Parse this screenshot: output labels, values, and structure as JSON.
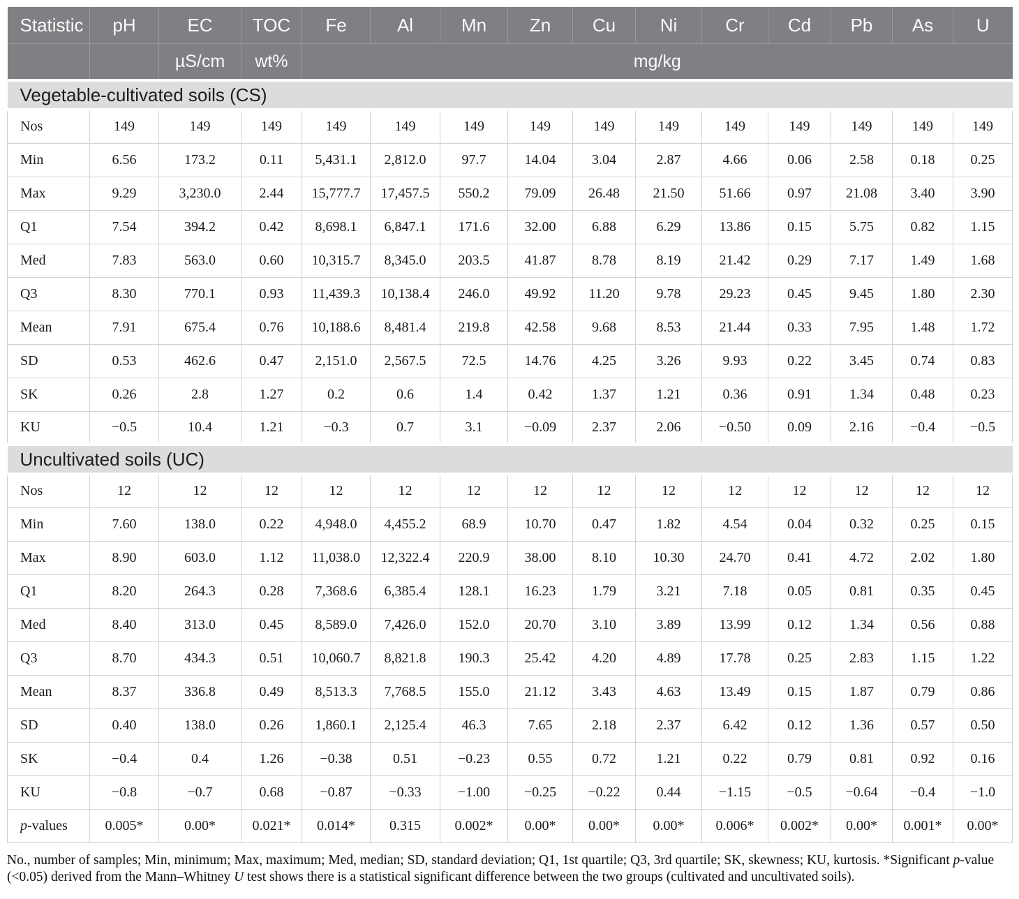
{
  "colors": {
    "header_bg": "#7e8083",
    "header_text": "#fafafa",
    "section_bg": "#dcdcde",
    "cell_border": "#d2d2d2",
    "body_text": "#1c1c1c"
  },
  "table": {
    "header": {
      "columns": [
        "Statistic",
        "pH",
        "EC",
        "TOC",
        "Fe",
        "Al",
        "Mn",
        "Zn",
        "Cu",
        "Ni",
        "Cr",
        "Cd",
        "Pb",
        "As",
        "U"
      ],
      "units": [
        "",
        "",
        "µS/cm",
        "wt%"
      ],
      "unit_span": {
        "label": "mg/kg",
        "colspan": 11
      }
    },
    "sections": [
      {
        "title": "Vegetable-cultivated soils (CS)",
        "rows": [
          {
            "label": "Nos",
            "values": [
              "149",
              "149",
              "149",
              "149",
              "149",
              "149",
              "149",
              "149",
              "149",
              "149",
              "149",
              "149",
              "149",
              "149"
            ]
          },
          {
            "label": "Min",
            "values": [
              "6.56",
              "173.2",
              "0.11",
              "5,431.1",
              "2,812.0",
              "97.7",
              "14.04",
              "3.04",
              "2.87",
              "4.66",
              "0.06",
              "2.58",
              "0.18",
              "0.25"
            ]
          },
          {
            "label": "Max",
            "values": [
              "9.29",
              "3,230.0",
              "2.44",
              "15,777.7",
              "17,457.5",
              "550.2",
              "79.09",
              "26.48",
              "21.50",
              "51.66",
              "0.97",
              "21.08",
              "3.40",
              "3.90"
            ]
          },
          {
            "label": "Q1",
            "values": [
              "7.54",
              "394.2",
              "0.42",
              "8,698.1",
              "6,847.1",
              "171.6",
              "32.00",
              "6.88",
              "6.29",
              "13.86",
              "0.15",
              "5.75",
              "0.82",
              "1.15"
            ]
          },
          {
            "label": "Med",
            "values": [
              "7.83",
              "563.0",
              "0.60",
              "10,315.7",
              "8,345.0",
              "203.5",
              "41.87",
              "8.78",
              "8.19",
              "21.42",
              "0.29",
              "7.17",
              "1.49",
              "1.68"
            ]
          },
          {
            "label": "Q3",
            "values": [
              "8.30",
              "770.1",
              "0.93",
              "11,439.3",
              "10,138.4",
              "246.0",
              "49.92",
              "11.20",
              "9.78",
              "29.23",
              "0.45",
              "9.45",
              "1.80",
              "2.30"
            ]
          },
          {
            "label": "Mean",
            "values": [
              "7.91",
              "675.4",
              "0.76",
              "10,188.6",
              "8,481.4",
              "219.8",
              "42.58",
              "9.68",
              "8.53",
              "21.44",
              "0.33",
              "7.95",
              "1.48",
              "1.72"
            ]
          },
          {
            "label": "SD",
            "values": [
              "0.53",
              "462.6",
              "0.47",
              "2,151.0",
              "2,567.5",
              "72.5",
              "14.76",
              "4.25",
              "3.26",
              "9.93",
              "0.22",
              "3.45",
              "0.74",
              "0.83"
            ]
          },
          {
            "label": "SK",
            "values": [
              "0.26",
              "2.8",
              "1.27",
              "0.2",
              "0.6",
              "1.4",
              "0.42",
              "1.37",
              "1.21",
              "0.36",
              "0.91",
              "1.34",
              "0.48",
              "0.23"
            ]
          },
          {
            "label": "KU",
            "values": [
              "−0.5",
              "10.4",
              "1.21",
              "−0.3",
              "0.7",
              "3.1",
              "−0.09",
              "2.37",
              "2.06",
              "−0.50",
              "0.09",
              "2.16",
              "−0.4",
              "−0.5"
            ]
          }
        ]
      },
      {
        "title": "Uncultivated soils (UC)",
        "rows": [
          {
            "label": "Nos",
            "values": [
              "12",
              "12",
              "12",
              "12",
              "12",
              "12",
              "12",
              "12",
              "12",
              "12",
              "12",
              "12",
              "12",
              "12"
            ]
          },
          {
            "label": "Min",
            "values": [
              "7.60",
              "138.0",
              "0.22",
              "4,948.0",
              "4,455.2",
              "68.9",
              "10.70",
              "0.47",
              "1.82",
              "4.54",
              "0.04",
              "0.32",
              "0.25",
              "0.15"
            ]
          },
          {
            "label": "Max",
            "values": [
              "8.90",
              "603.0",
              "1.12",
              "11,038.0",
              "12,322.4",
              "220.9",
              "38.00",
              "8.10",
              "10.30",
              "24.70",
              "0.41",
              "4.72",
              "2.02",
              "1.80"
            ]
          },
          {
            "label": "Q1",
            "values": [
              "8.20",
              "264.3",
              "0.28",
              "7,368.6",
              "6,385.4",
              "128.1",
              "16.23",
              "1.79",
              "3.21",
              "7.18",
              "0.05",
              "0.81",
              "0.35",
              "0.45"
            ]
          },
          {
            "label": "Med",
            "values": [
              "8.40",
              "313.0",
              "0.45",
              "8,589.0",
              "7,426.0",
              "152.0",
              "20.70",
              "3.10",
              "3.89",
              "13.99",
              "0.12",
              "1.34",
              "0.56",
              "0.88"
            ]
          },
          {
            "label": "Q3",
            "values": [
              "8.70",
              "434.3",
              "0.51",
              "10,060.7",
              "8,821.8",
              "190.3",
              "25.42",
              "4.20",
              "4.89",
              "17.78",
              "0.25",
              "2.83",
              "1.15",
              "1.22"
            ]
          },
          {
            "label": "Mean",
            "values": [
              "8.37",
              "336.8",
              "0.49",
              "8,513.3",
              "7,768.5",
              "155.0",
              "21.12",
              "3.43",
              "4.63",
              "13.49",
              "0.15",
              "1.87",
              "0.79",
              "0.86"
            ]
          },
          {
            "label": "SD",
            "values": [
              "0.40",
              "138.0",
              "0.26",
              "1,860.1",
              "2,125.4",
              "46.3",
              "7.65",
              "2.18",
              "2.37",
              "6.42",
              "0.12",
              "1.36",
              "0.57",
              "0.50"
            ]
          },
          {
            "label": "SK",
            "values": [
              "−0.4",
              "0.4",
              "1.26",
              "−0.38",
              "0.51",
              "−0.23",
              "0.55",
              "0.72",
              "1.21",
              "0.22",
              "0.79",
              "0.81",
              "0.92",
              "0.16"
            ]
          },
          {
            "label": "KU",
            "values": [
              "−0.8",
              "−0.7",
              "0.68",
              "−0.87",
              "−0.33",
              "−1.00",
              "−0.25",
              "−0.22",
              "0.44",
              "−1.15",
              "−0.5",
              "−0.64",
              "−0.4",
              "−1.0"
            ]
          },
          {
            "label": "p-values",
            "italic_first_letter": true,
            "values": [
              "0.005*",
              "0.00*",
              "0.021*",
              "0.014*",
              "0.315",
              "0.002*",
              "0.00*",
              "0.00*",
              "0.00*",
              "0.006*",
              "0.002*",
              "0.00*",
              "0.001*",
              "0.00*"
            ]
          }
        ]
      }
    ],
    "footnote_segments": [
      {
        "text": "No., number of samples; Min, minimum; Max, maximum; Med, median; SD, standard deviation; Q1, 1st quartile; Q3, 3rd quartile; SK, skewness; KU, kurtosis. *Significant ",
        "italic": false
      },
      {
        "text": "p",
        "italic": true
      },
      {
        "text": "-value (<0.05) derived from the Mann–Whitney ",
        "italic": false
      },
      {
        "text": "U",
        "italic": true
      },
      {
        "text": " test shows there is a statistical significant difference between the two groups (cultivated and uncultivated soils).",
        "italic": false
      }
    ]
  }
}
